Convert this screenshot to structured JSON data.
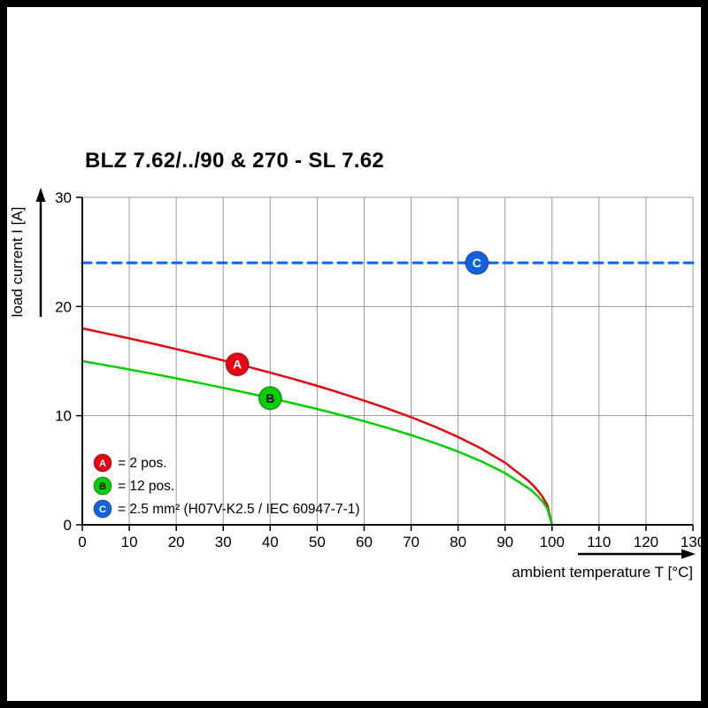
{
  "title": "BLZ 7.62/../90 & 270 - SL 7.62",
  "colors": {
    "background": "#ffffff",
    "frame": "#000000",
    "axis": "#000000",
    "grid": "#999999",
    "text": "#000000"
  },
  "chart_data": {
    "type": "line",
    "title": "BLZ 7.62/../90 & 270 - SL 7.62",
    "xlabel": "ambient temperature T [°C]",
    "ylabel": "load current I [A]",
    "xlim": [
      0,
      130
    ],
    "ylim": [
      0,
      30
    ],
    "x_ticks": [
      0,
      10,
      20,
      30,
      40,
      50,
      60,
      70,
      80,
      90,
      100,
      110,
      120,
      130
    ],
    "y_ticks": [
      0,
      10,
      20,
      30
    ],
    "grid": true,
    "legend_position": "lower-left",
    "series": [
      {
        "name": "A",
        "label": "= 2 pos.",
        "color": "#e30613",
        "line_style": "solid",
        "marker": {
          "letter": "A",
          "x": 33,
          "y": 14.7,
          "text_color": "#ffffff"
        },
        "x": [
          0,
          5,
          10,
          15,
          20,
          25,
          30,
          35,
          40,
          45,
          50,
          55,
          60,
          65,
          70,
          75,
          80,
          85,
          90,
          95,
          96,
          97,
          98,
          99,
          100
        ],
        "y": [
          18,
          17.54,
          17.08,
          16.6,
          16.1,
          15.59,
          15.06,
          14.51,
          13.94,
          13.35,
          12.73,
          12.07,
          11.38,
          10.65,
          9.86,
          9,
          8.05,
          6.97,
          5.69,
          4.02,
          3.6,
          3.12,
          2.55,
          1.8,
          0
        ]
      },
      {
        "name": "B",
        "label": "= 12 pos.",
        "color": "#00cf00",
        "line_style": "solid",
        "marker": {
          "letter": "B",
          "x": 40,
          "y": 11.6,
          "text_color": "#000000"
        },
        "x": [
          0,
          5,
          10,
          15,
          20,
          25,
          30,
          35,
          40,
          45,
          50,
          55,
          60,
          65,
          70,
          75,
          80,
          85,
          90,
          95,
          96,
          97,
          98,
          99,
          100
        ],
        "y": [
          15,
          14.62,
          14.23,
          13.83,
          13.42,
          12.99,
          12.55,
          12.09,
          11.62,
          11.12,
          10.61,
          10.06,
          9.49,
          8.87,
          8.22,
          7.5,
          6.71,
          5.81,
          4.74,
          3.35,
          3,
          2.6,
          2.12,
          1.5,
          0
        ]
      },
      {
        "name": "C",
        "label": "= 2.5 mm² (H07V-K2.5 / IEC 60947-7-1)",
        "color": "#0f62e0",
        "line_style": "dashed",
        "marker": {
          "letter": "C",
          "x": 84,
          "y": 24,
          "text_color": "#ffffff"
        },
        "x": [
          0,
          130
        ],
        "y": [
          24,
          24
        ]
      }
    ]
  }
}
